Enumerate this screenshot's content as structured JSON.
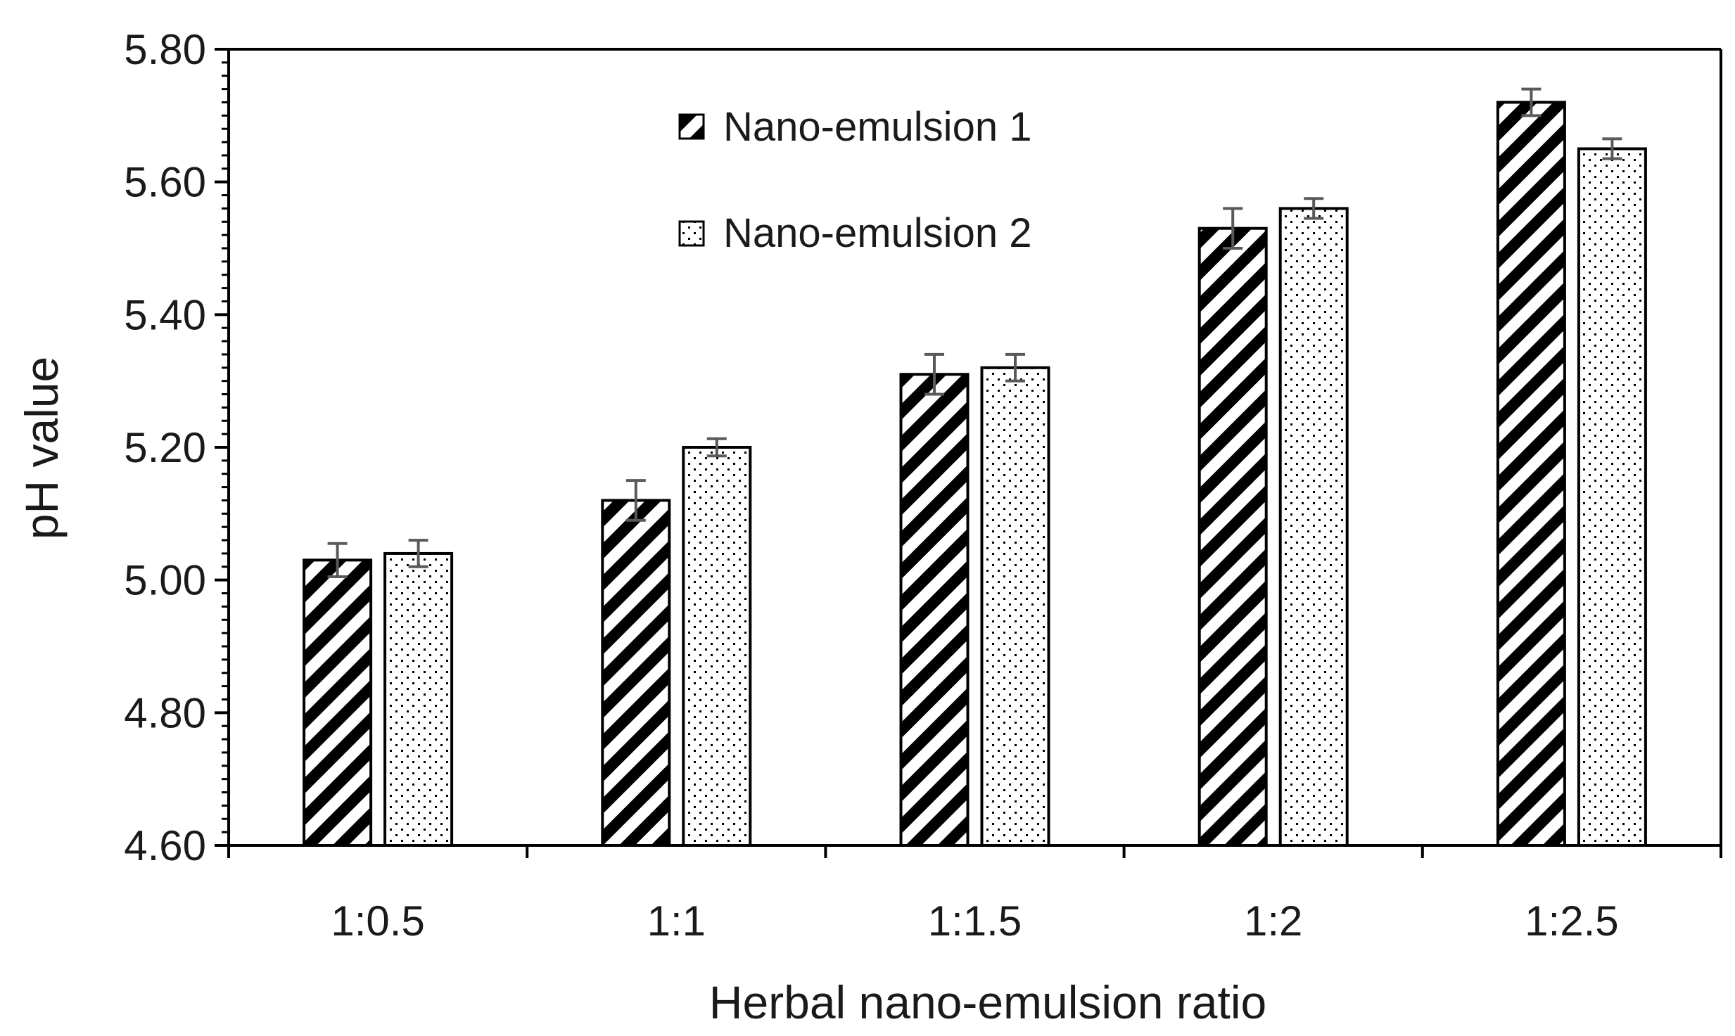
{
  "chart_data": {
    "type": "bar",
    "title": "",
    "xlabel": "Herbal nano-emulsion ratio",
    "ylabel": "pH value",
    "categories": [
      "1:0.5",
      "1:1",
      "1:1.5",
      "1:2",
      "1:2.5"
    ],
    "ylim": [
      4.6,
      5.8
    ],
    "yticks": [
      "4.60",
      "4.80",
      "5.00",
      "5.20",
      "5.40",
      "5.60",
      "5.80"
    ],
    "grid": false,
    "legend_position": "top-center",
    "series": [
      {
        "name": "Nano-emulsion 1",
        "pattern": "diagonal-stripes",
        "values": [
          5.03,
          5.12,
          5.31,
          5.53,
          5.72
        ],
        "errors": [
          0.025,
          0.03,
          0.03,
          0.03,
          0.02
        ]
      },
      {
        "name": "Nano-emulsion 2",
        "pattern": "dots",
        "values": [
          5.04,
          5.2,
          5.32,
          5.56,
          5.65
        ],
        "errors": [
          0.02,
          0.013,
          0.02,
          0.015,
          0.015
        ]
      }
    ],
    "colors": {
      "bar_edge": "#000000",
      "error_bar": "#595959",
      "axis": "#000000"
    }
  }
}
